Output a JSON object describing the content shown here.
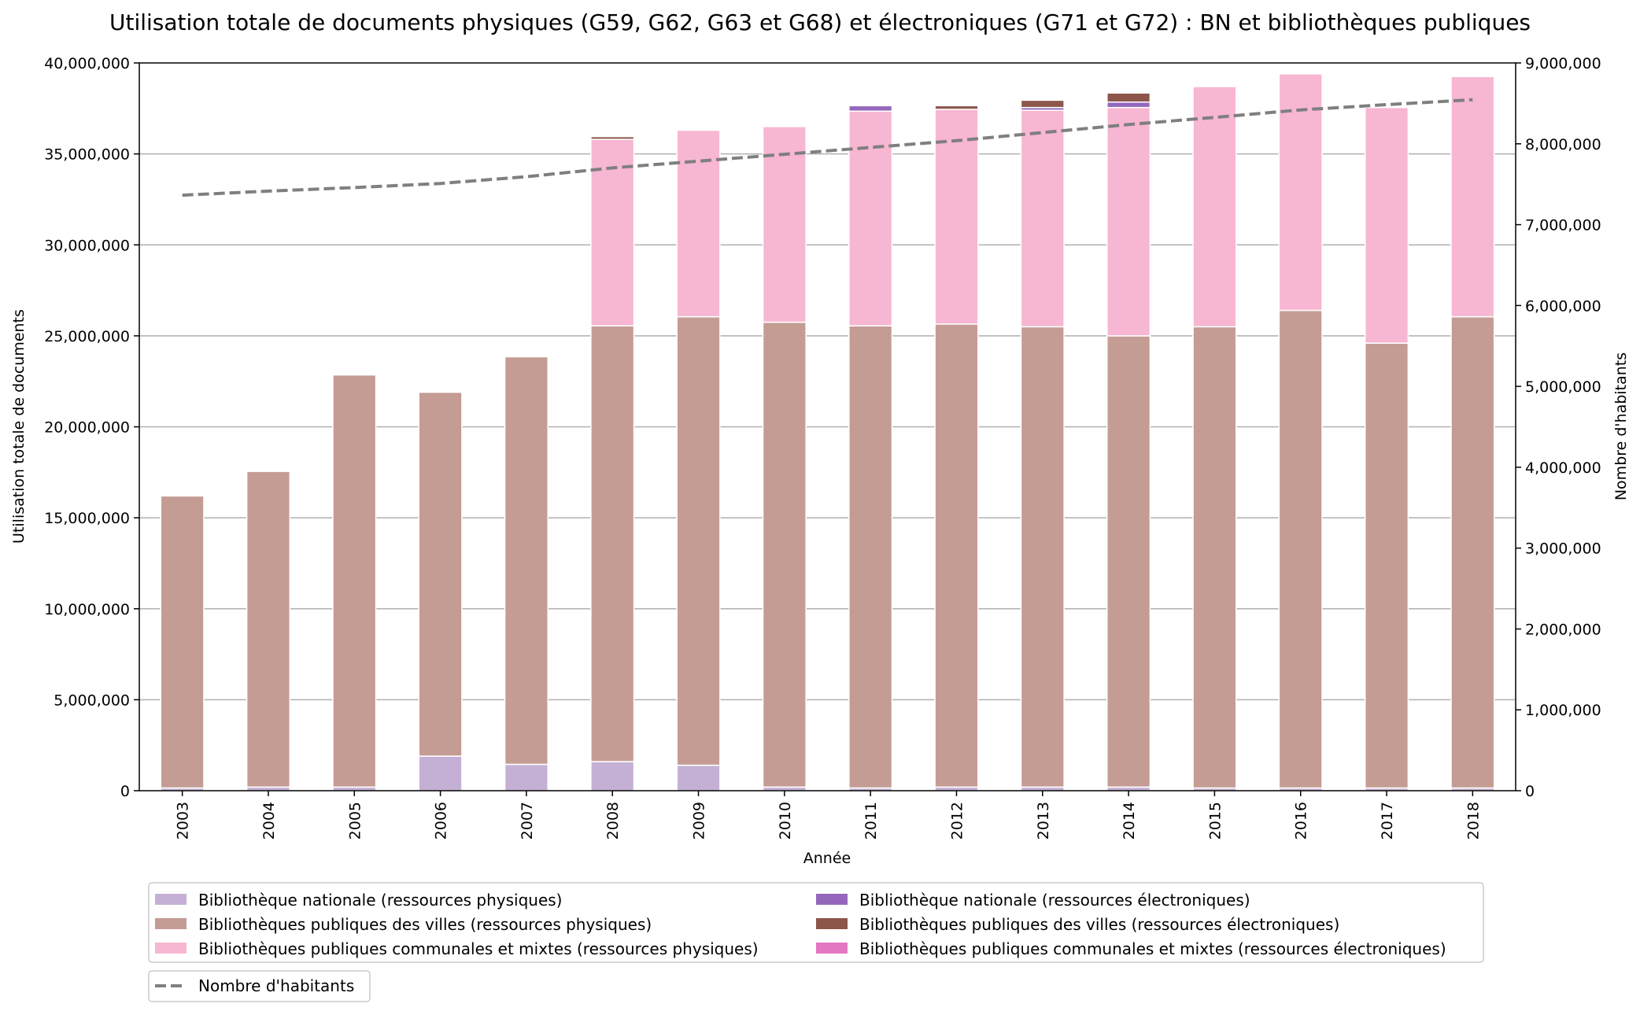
{
  "chart_data": {
    "type": "bar",
    "title": "Utilisation totale de documents physiques (G59, G62, G63 et G68) et électroniques (G71 et G72) : BN et bibliothèques publiques",
    "xlabel": "Année",
    "ylabel": "Utilisation totale de documents",
    "ylabel_right": "Nombre d'habitants",
    "ylim": [
      0,
      40000000
    ],
    "ylim_right": [
      0,
      9000000
    ],
    "yticks": [
      0,
      5000000,
      10000000,
      15000000,
      20000000,
      25000000,
      30000000,
      35000000,
      40000000
    ],
    "yticks_right": [
      0,
      1000000,
      2000000,
      3000000,
      4000000,
      5000000,
      6000000,
      7000000,
      8000000,
      9000000
    ],
    "grid": "horizontal",
    "legend_position": "bottom",
    "categories": [
      "2003",
      "2004",
      "2005",
      "2006",
      "2007",
      "2008",
      "2009",
      "2010",
      "2011",
      "2012",
      "2013",
      "2014",
      "2015",
      "2016",
      "2017",
      "2018"
    ],
    "series": [
      {
        "name": "Bibliothèque nationale (ressources physiques)",
        "color": "#c5b0d5",
        "values": [
          150000,
          200000,
          200000,
          1900000,
          1450000,
          1600000,
          1400000,
          200000,
          150000,
          200000,
          200000,
          200000,
          150000,
          150000,
          150000,
          150000
        ]
      },
      {
        "name": "Bibliothèques publiques des villes (ressources physiques)",
        "color": "#c49c94",
        "values": [
          16050000,
          17350000,
          22650000,
          20000000,
          22400000,
          23950000,
          24650000,
          25550000,
          25400000,
          25450000,
          25300000,
          24800000,
          25350000,
          26250000,
          24450000,
          25900000
        ]
      },
      {
        "name": "Bibliothèques publiques communales et mixtes (ressources physiques)",
        "color": "#f7b6d2",
        "values": [
          0,
          0,
          0,
          0,
          0,
          10250000,
          10250000,
          10750000,
          11800000,
          11800000,
          11900000,
          12550000,
          13200000,
          13000000,
          12950000,
          13200000
        ]
      },
      {
        "name": "Bibliothèque nationale (ressources électroniques)",
        "color": "#9467bd",
        "values": [
          0,
          0,
          0,
          0,
          0,
          0,
          0,
          0,
          300000,
          0,
          150000,
          300000,
          0,
          0,
          0,
          0
        ]
      },
      {
        "name": "Bibliothèques publiques des villes (ressources électroniques)",
        "color": "#8c564b",
        "values": [
          0,
          0,
          0,
          0,
          0,
          150000,
          0,
          0,
          0,
          200000,
          400000,
          500000,
          0,
          0,
          0,
          0
        ]
      },
      {
        "name": "Bibliothèques publiques communales et mixtes (ressources électroniques)",
        "color": "#e377c2",
        "values": [
          0,
          0,
          0,
          0,
          0,
          0,
          0,
          0,
          0,
          0,
          0,
          50000,
          0,
          0,
          0,
          0
        ]
      }
    ],
    "line_series": {
      "name": "Nombre d'habitants",
      "color": "#7f7f7f",
      "axis": "right",
      "style": "dashed",
      "values": [
        7364000,
        7415000,
        7459000,
        7509000,
        7593000,
        7702000,
        7786000,
        7870000,
        7955000,
        8039000,
        8139000,
        8238000,
        8327000,
        8419000,
        8484000,
        8545000
      ]
    }
  }
}
